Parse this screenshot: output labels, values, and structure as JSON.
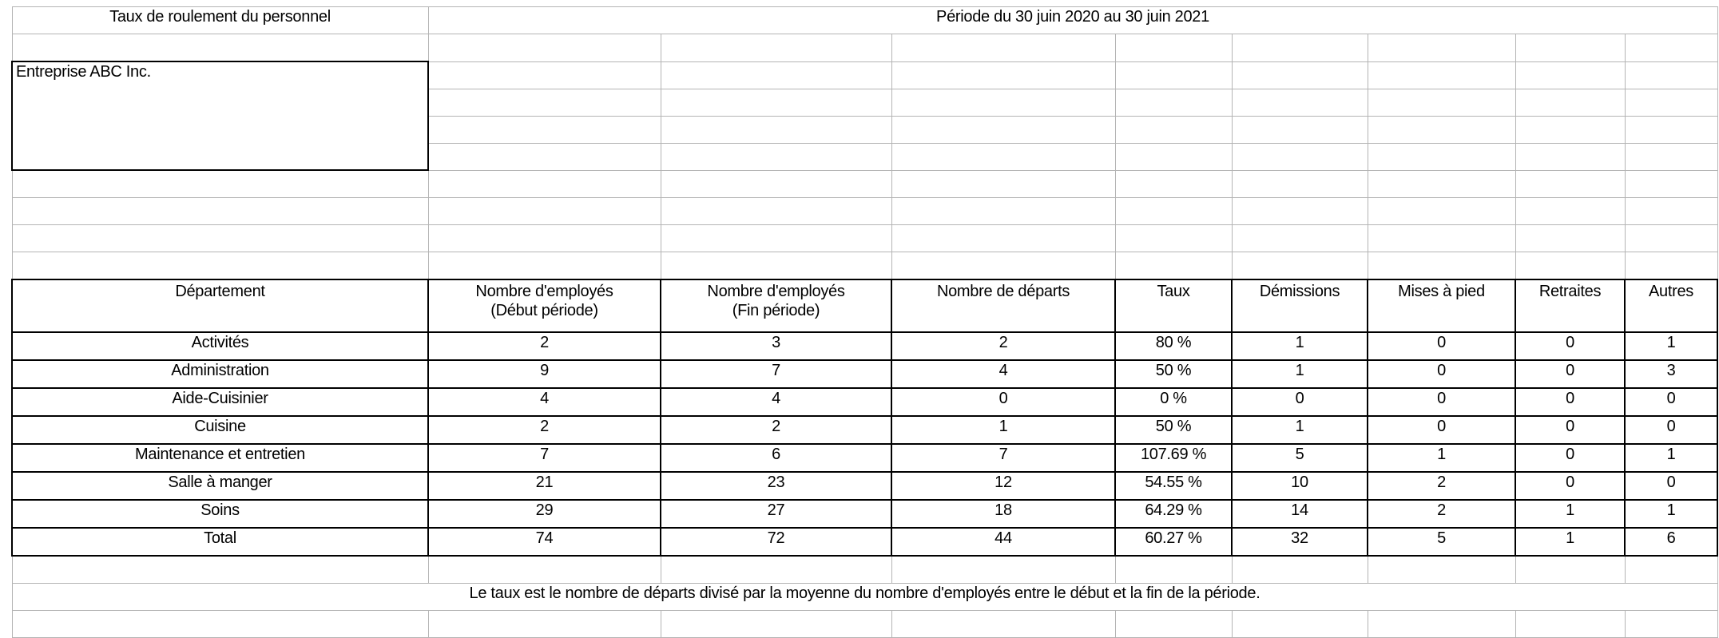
{
  "sheet": {
    "title": "Taux de roulement du personnel",
    "period": "Période du 30 juin 2020 au 30 juin 2021",
    "company": "Entreprise ABC Inc.",
    "note": "Le taux est le nombre de départs divisé par la moyenne du nombre d'employés entre le début et la fin de la période."
  },
  "table": {
    "columns": [
      [
        "Département"
      ],
      [
        "Nombre d'employés",
        "(Début période)"
      ],
      [
        "Nombre d'employés",
        "(Fin période)"
      ],
      [
        "Nombre de départs"
      ],
      [
        "Taux"
      ],
      [
        "Démissions"
      ],
      [
        "Mises à pied"
      ],
      [
        "Retraites"
      ],
      [
        "Autres"
      ]
    ],
    "rows": [
      [
        "Activités",
        "2",
        "3",
        "2",
        "80 %",
        "1",
        "0",
        "0",
        "1"
      ],
      [
        "Administration",
        "9",
        "7",
        "4",
        "50 %",
        "1",
        "0",
        "0",
        "3"
      ],
      [
        "Aide-Cuisinier",
        "4",
        "4",
        "0",
        "0 %",
        "0",
        "0",
        "0",
        "0"
      ],
      [
        "Cuisine",
        "2",
        "2",
        "1",
        "50 %",
        "1",
        "0",
        "0",
        "0"
      ],
      [
        "Maintenance et entretien",
        "7",
        "6",
        "7",
        "107.69 %",
        "5",
        "1",
        "0",
        "1"
      ],
      [
        "Salle à manger",
        "21",
        "23",
        "12",
        "54.55 %",
        "10",
        "2",
        "0",
        "0"
      ],
      [
        "Soins",
        "29",
        "27",
        "18",
        "64.29 %",
        "14",
        "2",
        "1",
        "1"
      ],
      [
        "Total",
        "74",
        "72",
        "44",
        "60.27 %",
        "32",
        "5",
        "1",
        "6"
      ]
    ]
  }
}
